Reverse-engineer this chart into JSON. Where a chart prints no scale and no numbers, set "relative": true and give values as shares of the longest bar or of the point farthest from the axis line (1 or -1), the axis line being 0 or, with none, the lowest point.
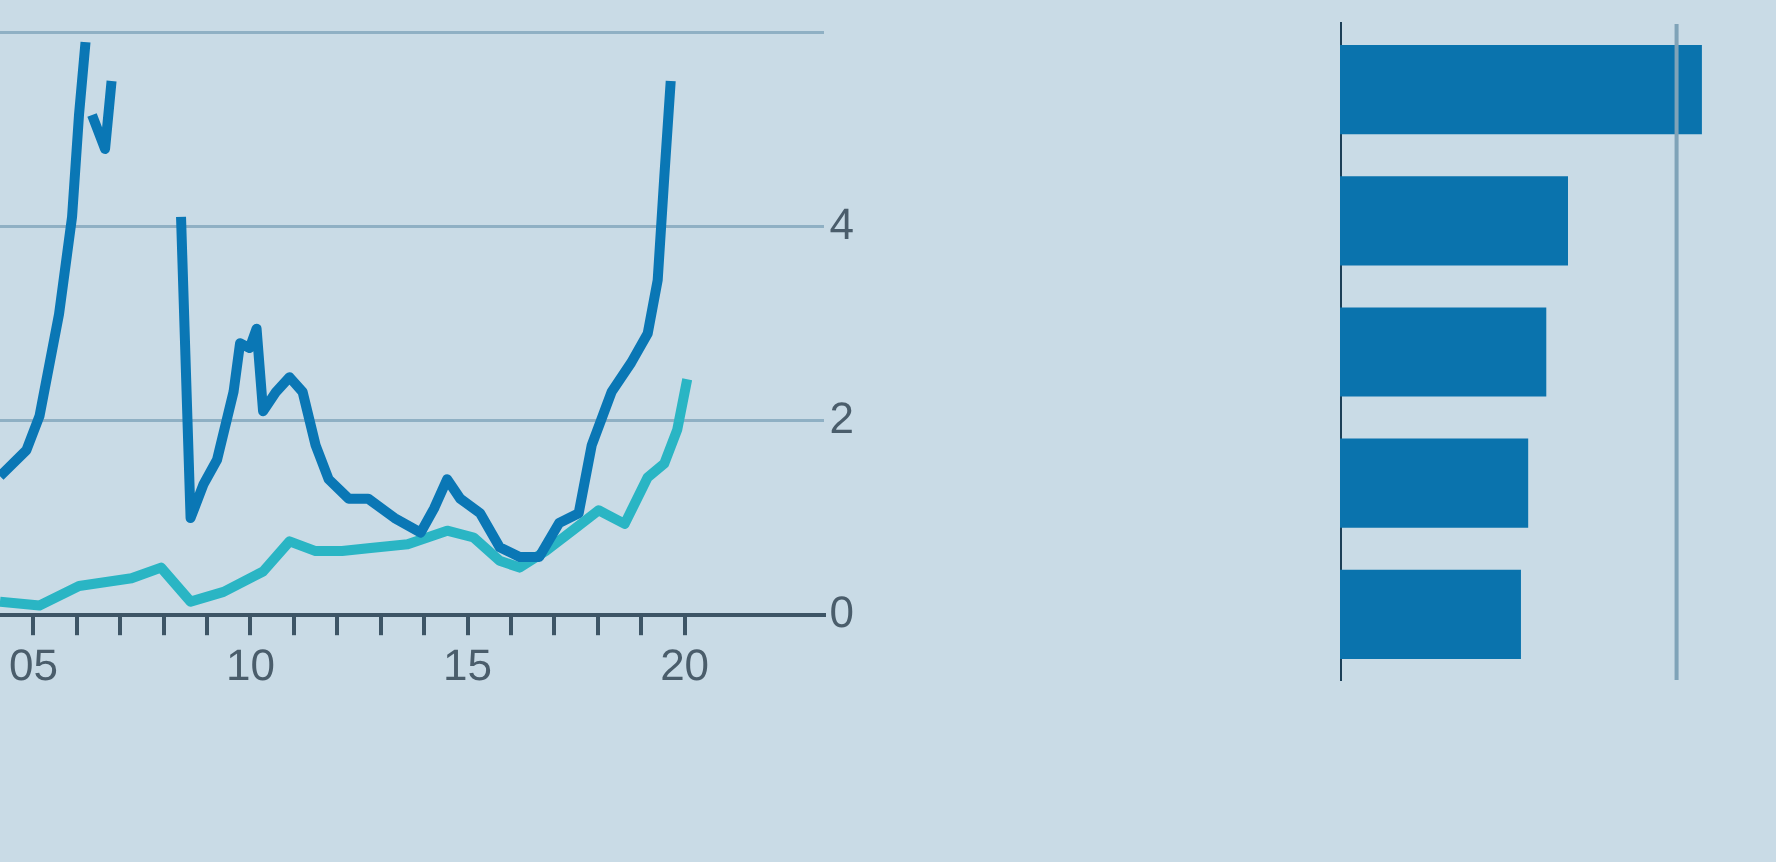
{
  "chart_data": [
    {
      "type": "line",
      "x": [
        2004.23,
        2004.84,
        2005.14,
        2005.59,
        2005.89,
        2006.05,
        2006.2,
        2006.3,
        2006.35,
        2006.65,
        2006.8,
        2006.95,
        2007.5,
        2008.3,
        2008.4,
        2008.62,
        2008.92,
        2009.23,
        2009.61,
        2009.76,
        2009.98,
        2010.14,
        2010.29,
        2010.59,
        2010.9,
        2011.2,
        2011.5,
        2011.8,
        2012.26,
        2012.71,
        2013.32,
        2013.92,
        2014.23,
        2014.53,
        2014.83,
        2015.29,
        2015.74,
        2016.2,
        2016.65,
        2017.11,
        2017.56,
        2017.86,
        2018.32,
        2018.77,
        2019.15,
        2019.38,
        2019.53,
        2019.68
      ],
      "xlim": [
        2004.23,
        2023.2
      ],
      "xticks": [
        {
          "value": 2005,
          "label": "05"
        },
        {
          "value": 2006,
          "label": null
        },
        {
          "value": 2007,
          "label": null
        },
        {
          "value": 2008,
          "label": null
        },
        {
          "value": 2009,
          "label": null
        },
        {
          "value": 2010,
          "label": "10"
        },
        {
          "value": 2011,
          "label": null
        },
        {
          "value": 2012,
          "label": null
        },
        {
          "value": 2013,
          "label": null
        },
        {
          "value": 2014,
          "label": null
        },
        {
          "value": 2015,
          "label": "15"
        },
        {
          "value": 2016,
          "label": null
        },
        {
          "value": 2017,
          "label": null
        },
        {
          "value": 2018,
          "label": null
        },
        {
          "value": 2019,
          "label": null
        },
        {
          "value": 2020,
          "label": "20"
        }
      ],
      "ylim": [
        0,
        6
      ],
      "yticks": [
        0,
        2,
        4,
        {
          "value": 6,
          "label": null
        }
      ],
      "grid": "y",
      "legend": false,
      "line_style": "solid",
      "marker": "none",
      "series": [
        {
          "color": "#0a77b5",
          "values": [
            1.43,
            1.7,
            2.05,
            3.1,
            4.1,
            5.15,
            5.9,
            null,
            5.15,
            4.8,
            5.5,
            null,
            null,
            null,
            4.1,
            1.0,
            1.35,
            1.6,
            2.3,
            2.8,
            2.75,
            2.95,
            2.1,
            2.3,
            2.45,
            2.3,
            1.75,
            1.4,
            1.2,
            1.2,
            1.0,
            0.85,
            1.1,
            1.4,
            1.2,
            1.05,
            0.7,
            0.6,
            0.6,
            0.95,
            1.05,
            1.75,
            2.3,
            2.6,
            2.9,
            3.45,
            4.5,
            5.5
          ]
        },
        {
          "color": "#2ab5c4",
          "x": [
            2004.23,
            2005.14,
            2006.05,
            2007.26,
            2007.94,
            2008.62,
            2009.38,
            2010.29,
            2010.9,
            2011.5,
            2012.11,
            2012.71,
            2013.62,
            2014.53,
            2015.14,
            2015.74,
            2016.2,
            2016.8,
            2017.41,
            2018.02,
            2018.62,
            2019.15,
            2019.53,
            2019.83,
            2020.06
          ],
          "values": [
            0.14,
            0.1,
            0.3,
            0.38,
            0.49,
            0.14,
            0.24,
            0.45,
            0.76,
            0.66,
            0.66,
            0.69,
            0.73,
            0.87,
            0.8,
            0.56,
            0.49,
            0.66,
            0.87,
            1.08,
            0.94,
            1.42,
            1.56,
            1.91,
            2.43
          ]
        }
      ]
    },
    {
      "type": "bar",
      "orientation": "horizontal",
      "relative": true,
      "categories": [
        null,
        null,
        null,
        null,
        null
      ],
      "values": [
        1,
        0.63,
        0.57,
        0.52,
        0.5
      ],
      "color": "#0a73ad",
      "legend": false,
      "grid": false,
      "ref_lines": [
        {
          "axis": "x",
          "value": 0.93,
          "color": "#7fa3b8"
        }
      ]
    }
  ]
}
